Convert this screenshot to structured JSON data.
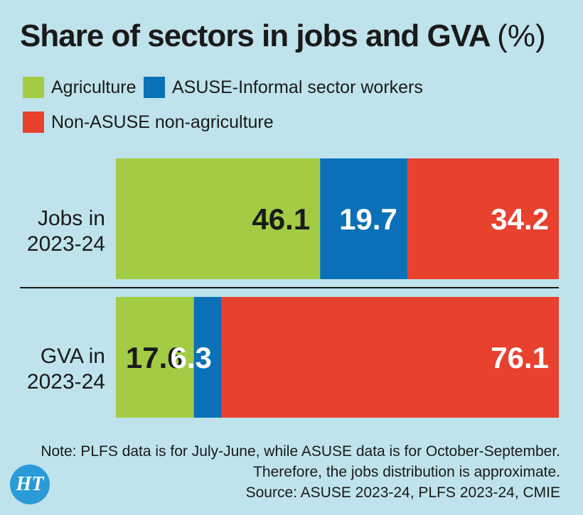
{
  "title": "Share of sectors in jobs and GVA",
  "title_unit": "(%)",
  "colors": {
    "agriculture": "#a3cc44",
    "asuse": "#0a71b8",
    "non_asuse": "#e8412e",
    "background": "#bfe3ec"
  },
  "chart_data": {
    "type": "bar",
    "stacked": true,
    "orientation": "horizontal",
    "categories": [
      "Jobs in 2023-24",
      "GVA in 2023-24"
    ],
    "category_lines": [
      [
        "Jobs in",
        "2023-24"
      ],
      [
        "GVA in",
        "2023-24"
      ]
    ],
    "series": [
      {
        "name": "Agriculture",
        "color": "#a3cc44",
        "label_color": "#1a1a1a",
        "values": [
          46.1,
          17.6
        ]
      },
      {
        "name": "ASUSE-Informal sector workers",
        "color": "#0a71b8",
        "label_color": "#ffffff",
        "values": [
          19.7,
          6.3
        ]
      },
      {
        "name": "Non-ASUSE non-agriculture",
        "color": "#e8412e",
        "label_color": "#ffffff",
        "values": [
          34.2,
          76.1
        ]
      }
    ],
    "xlim": [
      0,
      100
    ],
    "legend_position": "top-left"
  },
  "notes": [
    "Note: PLFS data is for July-June, while ASUSE data is for October-September.",
    "Therefore, the jobs distribution is approximate.",
    "Source: ASUSE 2023-24, PLFS 2023-24, CMIE"
  ],
  "logo_text": "HT"
}
